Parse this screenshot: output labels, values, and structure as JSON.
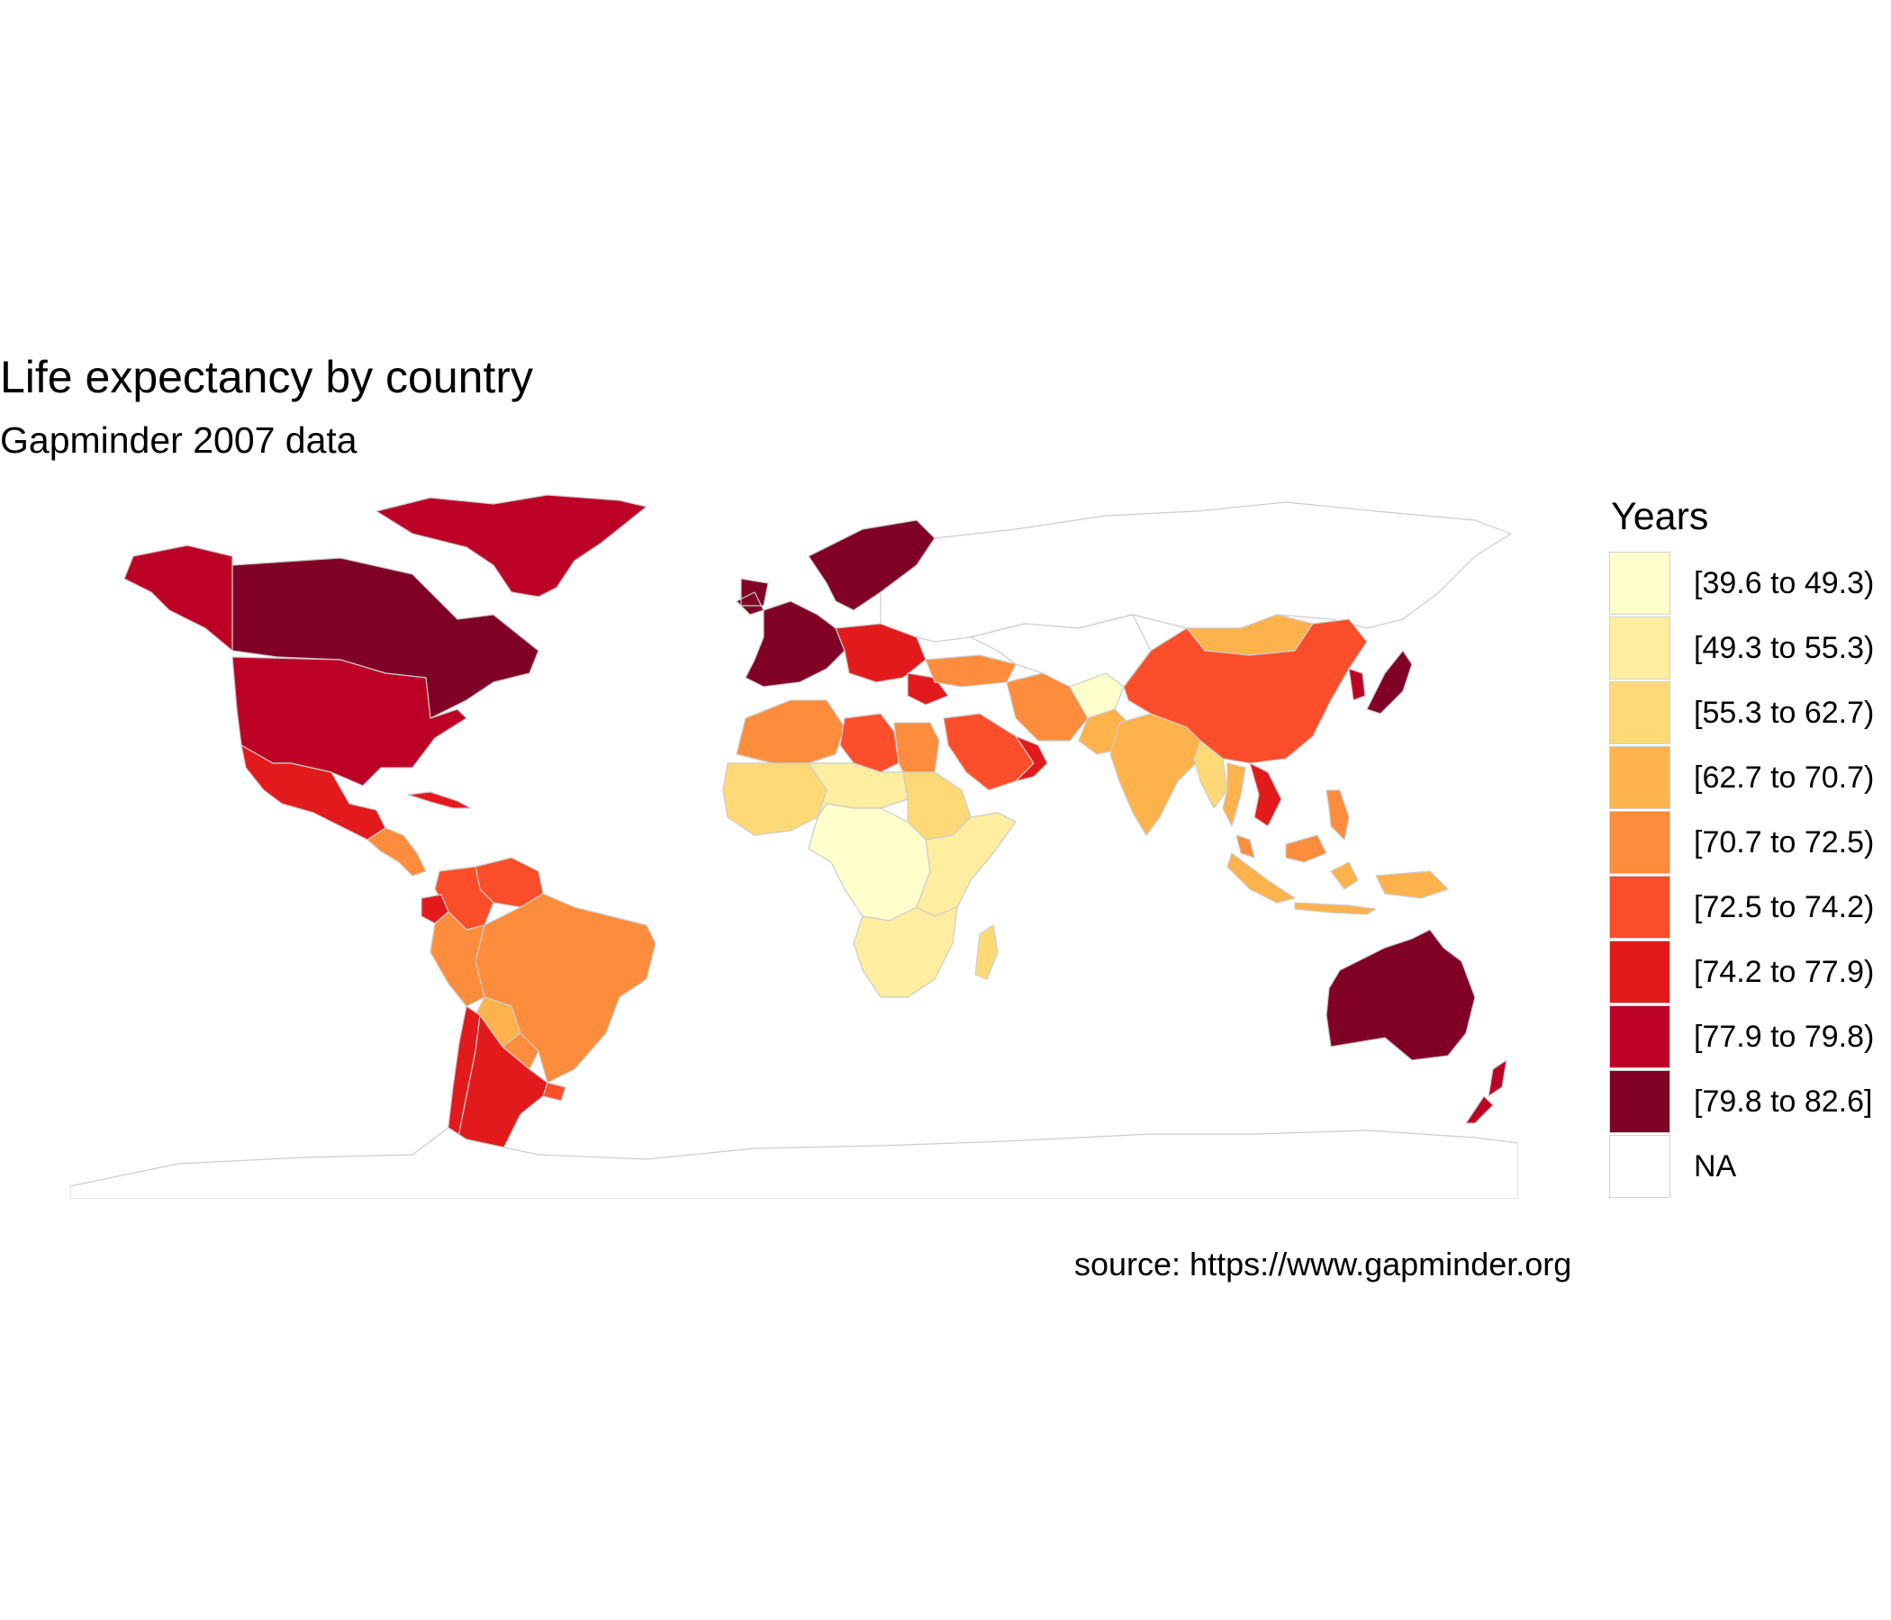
{
  "title": "Life expectancy by country",
  "subtitle": "Gapminder 2007 data",
  "caption": "source: https://www.gapminder.org",
  "legend": {
    "title": "Years",
    "items": [
      {
        "label": "[39.6 to 49.3)",
        "color": "#ffffcc"
      },
      {
        "label": "[49.3 to 55.3)",
        "color": "#ffeda0"
      },
      {
        "label": "[55.3 to 62.7)",
        "color": "#fed976"
      },
      {
        "label": "[62.7 to 70.7)",
        "color": "#feb24c"
      },
      {
        "label": "[70.7 to 72.5)",
        "color": "#fd8d3c"
      },
      {
        "label": "[72.5 to 74.2)",
        "color": "#fc4e2a"
      },
      {
        "label": "[74.2 to 77.9)",
        "color": "#e31a1c"
      },
      {
        "label": "[77.9 to 79.8)",
        "color": "#bd0026"
      },
      {
        "label": "[79.8 to 82.6]",
        "color": "#800026"
      },
      {
        "label": "NA",
        "color": "#ffffff"
      }
    ]
  },
  "chart_data": {
    "type": "choropleth",
    "title": "Life expectancy by country",
    "subtitle": "Gapminder 2007 data",
    "legend_title": "Years",
    "legend_placement": "right",
    "classes": [
      "[39.6 to 49.3)",
      "[49.3 to 55.3)",
      "[55.3 to 62.7)",
      "[62.7 to 70.7)",
      "[70.7 to 72.5)",
      "[72.5 to 74.2)",
      "[74.2 to 77.9)",
      "[77.9 to 79.8)",
      "[79.8 to 82.6]",
      "NA"
    ],
    "regions": [
      {
        "name": "Canada",
        "class": 8
      },
      {
        "name": "United States",
        "class": 7
      },
      {
        "name": "Greenland",
        "class": 7
      },
      {
        "name": "Alaska",
        "class": 7
      },
      {
        "name": "Mexico",
        "class": 6
      },
      {
        "name": "Central America",
        "class": 4
      },
      {
        "name": "Cuba",
        "class": 6
      },
      {
        "name": "Venezuela",
        "class": 5
      },
      {
        "name": "Colombia",
        "class": 5
      },
      {
        "name": "Ecuador",
        "class": 6
      },
      {
        "name": "Brazil",
        "class": 4
      },
      {
        "name": "Peru",
        "class": 4
      },
      {
        "name": "Bolivia",
        "class": 3
      },
      {
        "name": "Paraguay",
        "class": 4
      },
      {
        "name": "Uruguay",
        "class": 5
      },
      {
        "name": "Chile",
        "class": 6
      },
      {
        "name": "Argentina",
        "class": 6
      },
      {
        "name": "Western Europe",
        "class": 8
      },
      {
        "name": "Scandinavia",
        "class": 8
      },
      {
        "name": "Eastern Europe",
        "class": 6
      },
      {
        "name": "Russia",
        "class": 9
      },
      {
        "name": "North Africa",
        "class": 4
      },
      {
        "name": "Libya",
        "class": 5
      },
      {
        "name": "Egypt",
        "class": 4
      },
      {
        "name": "West Africa",
        "class": 2
      },
      {
        "name": "Sahel",
        "class": 1
      },
      {
        "name": "Sudan",
        "class": 2
      },
      {
        "name": "Central Africa",
        "class": 0
      },
      {
        "name": "East Africa",
        "class": 1
      },
      {
        "name": "Southern Africa",
        "class": 1
      },
      {
        "name": "Madagascar",
        "class": 2
      },
      {
        "name": "Arabian Peninsula",
        "class": 5
      },
      {
        "name": "Oman",
        "class": 6
      },
      {
        "name": "Turkey",
        "class": 4
      },
      {
        "name": "Iran",
        "class": 4
      },
      {
        "name": "Afghanistan",
        "class": 0
      },
      {
        "name": "Pakistan",
        "class": 3
      },
      {
        "name": "India",
        "class": 3
      },
      {
        "name": "Mongolia",
        "class": 3
      },
      {
        "name": "China",
        "class": 5
      },
      {
        "name": "Japan",
        "class": 8
      },
      {
        "name": "Korea",
        "class": 7
      },
      {
        "name": "Myanmar",
        "class": 2
      },
      {
        "name": "Thailand",
        "class": 3
      },
      {
        "name": "Vietnam",
        "class": 6
      },
      {
        "name": "Malaysia",
        "class": 4
      },
      {
        "name": "Indonesia",
        "class": 3
      },
      {
        "name": "Philippines",
        "class": 4
      },
      {
        "name": "Australia",
        "class": 8
      },
      {
        "name": "New Zealand",
        "class": 7
      },
      {
        "name": "Kazakhstan & Central Asia",
        "class": 9
      },
      {
        "name": "Antarctica",
        "class": 9
      }
    ]
  }
}
